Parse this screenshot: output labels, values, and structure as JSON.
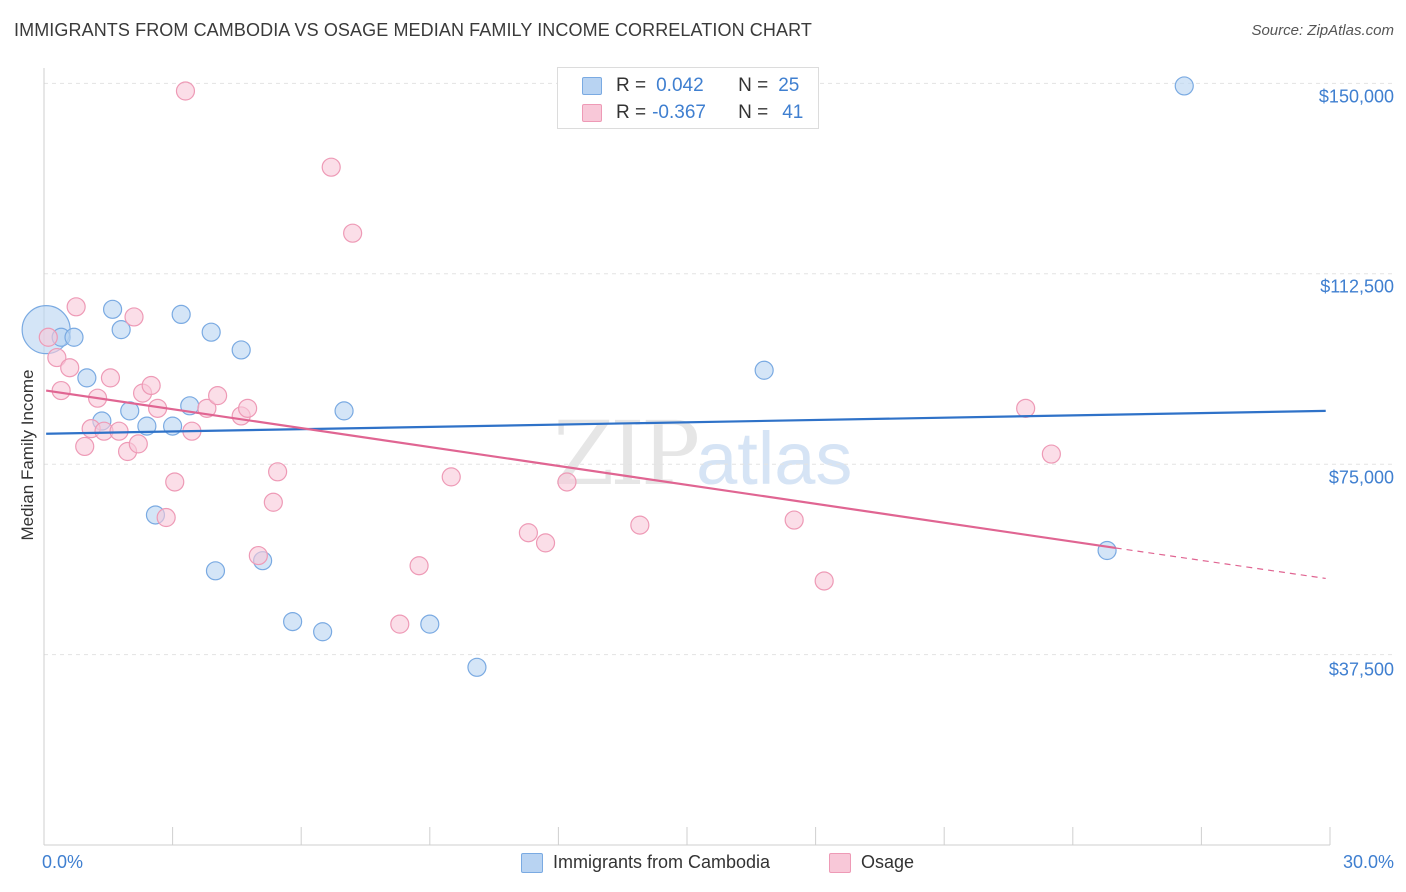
{
  "header": {
    "title": "IMMIGRANTS FROM CAMBODIA VS OSAGE MEDIAN FAMILY INCOME CORRELATION CHART",
    "source": "Source: ZipAtlas.com"
  },
  "watermark": {
    "zip": "ZIP",
    "atlas": "atlas"
  },
  "legend": {
    "r_label": "R =",
    "n_label": "N =",
    "series": [
      {
        "name": "Immigrants from Cambodia",
        "r": "0.042",
        "n": "25"
      },
      {
        "name": "Osage",
        "r": "-0.367",
        "n": "41"
      }
    ]
  },
  "colors": {
    "cambodia_fill": "#b8d3f2",
    "cambodia_stroke": "#7aaae2",
    "cambodia_line": "#2f72c8",
    "osage_fill": "#f8c8d8",
    "osage_stroke": "#ee9ab6",
    "osage_line": "#e06592",
    "axis_text": "#3f7fd0"
  },
  "chart_data": {
    "type": "scatter",
    "title": "IMMIGRANTS FROM CAMBODIA VS OSAGE MEDIAN FAMILY INCOME CORRELATION CHART",
    "xlabel": "",
    "ylabel": "Median Family Income",
    "xlim": [
      0,
      30
    ],
    "ylim": [
      0,
      155000
    ],
    "x_tick_labels": [
      "0.0%",
      "30.0%"
    ],
    "y_ticks": [
      37500,
      75000,
      112500,
      150000
    ],
    "y_tick_labels": [
      "$37,500",
      "$75,000",
      "$112,500",
      "$150,000"
    ],
    "series": [
      {
        "name": "Immigrants from Cambodia",
        "points": [
          [
            0.05,
            101500,
            24
          ],
          [
            0.4,
            100000,
            9
          ],
          [
            0.7,
            100000,
            9
          ],
          [
            1.6,
            105500,
            9
          ],
          [
            1.8,
            101500,
            9
          ],
          [
            3.2,
            104500,
            9
          ],
          [
            3.9,
            101000,
            9
          ],
          [
            4.6,
            97500,
            9
          ],
          [
            1.0,
            92000,
            9
          ],
          [
            1.35,
            83500,
            9
          ],
          [
            2.0,
            85500,
            9
          ],
          [
            2.4,
            82500,
            9
          ],
          [
            3.0,
            82500,
            9
          ],
          [
            3.4,
            86500,
            9
          ],
          [
            7.0,
            85500,
            9
          ],
          [
            2.6,
            65000,
            9
          ],
          [
            4.0,
            54000,
            9
          ],
          [
            5.1,
            56000,
            9
          ],
          [
            5.8,
            44000,
            9
          ],
          [
            6.5,
            42000,
            9
          ],
          [
            9.0,
            43500,
            9
          ],
          [
            10.1,
            35000,
            9
          ],
          [
            16.8,
            93500,
            9
          ],
          [
            24.8,
            58000,
            9
          ],
          [
            26.6,
            149500,
            9
          ]
        ],
        "trend": {
          "x": [
            0.05,
            29.9
          ],
          "y": [
            81000,
            85500
          ]
        }
      },
      {
        "name": "Osage",
        "points": [
          [
            3.3,
            148500,
            9
          ],
          [
            6.7,
            133500,
            9
          ],
          [
            7.2,
            120500,
            9
          ],
          [
            0.1,
            100000,
            9
          ],
          [
            0.3,
            96000,
            9
          ],
          [
            0.4,
            89500,
            9
          ],
          [
            0.6,
            94000,
            9
          ],
          [
            0.75,
            106000,
            9
          ],
          [
            0.95,
            78500,
            9
          ],
          [
            1.1,
            82000,
            9
          ],
          [
            1.25,
            88000,
            9
          ],
          [
            1.4,
            81500,
            9
          ],
          [
            1.55,
            92000,
            9
          ],
          [
            1.75,
            81500,
            9
          ],
          [
            1.95,
            77500,
            9
          ],
          [
            2.1,
            104000,
            9
          ],
          [
            2.2,
            79000,
            9
          ],
          [
            2.3,
            89000,
            9
          ],
          [
            2.5,
            90500,
            9
          ],
          [
            2.65,
            86000,
            9
          ],
          [
            2.85,
            64500,
            9
          ],
          [
            3.05,
            71500,
            9
          ],
          [
            3.45,
            81500,
            9
          ],
          [
            3.8,
            86000,
            9
          ],
          [
            4.05,
            88500,
            9
          ],
          [
            4.6,
            84500,
            9
          ],
          [
            4.75,
            86000,
            9
          ],
          [
            5.0,
            57000,
            9
          ],
          [
            5.35,
            67500,
            9
          ],
          [
            5.45,
            73500,
            9
          ],
          [
            8.3,
            43500,
            9
          ],
          [
            8.75,
            55000,
            9
          ],
          [
            9.5,
            72500,
            9
          ],
          [
            11.3,
            61500,
            9
          ],
          [
            11.7,
            59500,
            9
          ],
          [
            12.2,
            71500,
            9
          ],
          [
            13.9,
            63000,
            9
          ],
          [
            17.5,
            64000,
            9
          ],
          [
            18.2,
            52000,
            9
          ],
          [
            22.9,
            86000,
            9
          ],
          [
            23.5,
            77000,
            9
          ]
        ],
        "trend": {
          "x": [
            0.05,
            25.0
          ],
          "y": [
            89500,
            58500
          ]
        },
        "trend_extension": {
          "x": [
            25.0,
            29.9
          ],
          "y": [
            58500,
            52500
          ]
        }
      }
    ]
  }
}
